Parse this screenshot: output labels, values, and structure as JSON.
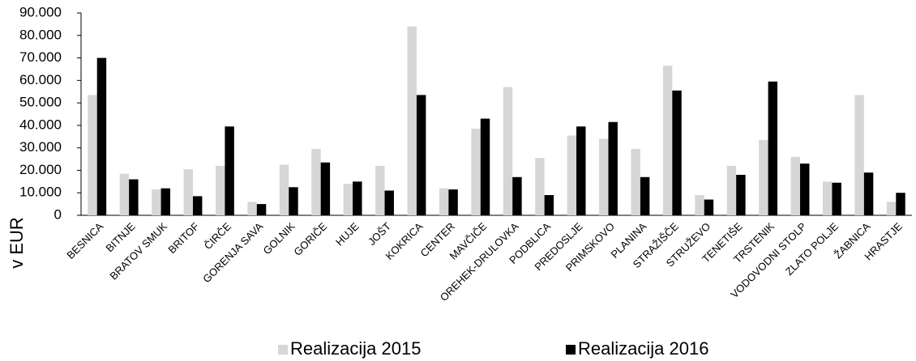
{
  "chart_data": {
    "type": "bar",
    "y_label": "v EUR",
    "categories": [
      "BESNICA",
      "BITNJE",
      "BRATOV SMUK",
      "BRITOF",
      "ČIRČE",
      "GORENJA SAVA",
      "GOLNIK",
      "GORIČE",
      "HUJE",
      "JOŠT",
      "KOKRICA",
      "CENTER",
      "MAVČIČE",
      "OREHEK-DRULOVKA",
      "PODBLICA",
      "PREDOSLJE",
      "PRIMSKOVO",
      "PLANINA",
      "STRAŽIŠČE",
      "STRUŽEVO",
      "TENETIŠE",
      "TRSTENIK",
      "VODOVODNI STOLP",
      "ZLATO POLJE",
      "ŽABNICA",
      "HRASTJE"
    ],
    "series": [
      {
        "name": "Realizacija 2015",
        "color": "#d6d6d6",
        "values": [
          53500,
          18500,
          11500,
          20500,
          22000,
          6000,
          22500,
          29500,
          14000,
          22000,
          84000,
          12000,
          38500,
          57000,
          25500,
          35500,
          34000,
          29500,
          66500,
          9000,
          22000,
          33500,
          26000,
          15000,
          53500,
          6000
        ]
      },
      {
        "name": "Realizacija 2016",
        "color": "#000000",
        "values": [
          70000,
          16000,
          12000,
          8500,
          39500,
          5000,
          12500,
          23500,
          15000,
          11000,
          53500,
          11500,
          43000,
          17000,
          9000,
          39500,
          41500,
          17000,
          55500,
          7000,
          18000,
          59500,
          23000,
          14500,
          19000,
          10000
        ]
      }
    ],
    "ylim": [
      0,
      90000
    ],
    "yticks": [
      0,
      {
        "value": 10000,
        "label": "10.000"
      },
      {
        "value": 20000,
        "label": "20.000"
      },
      {
        "value": 30000,
        "label": "30.000"
      },
      {
        "value": 40000,
        "label": "40.000"
      },
      {
        "value": 50000,
        "label": "50.000"
      },
      {
        "value": 60000,
        "label": "60.000"
      },
      {
        "value": 70000,
        "label": "70.000"
      },
      {
        "value": 80000,
        "label": "80.000"
      },
      {
        "value": 90000,
        "label": "90.000"
      }
    ],
    "legend": "bottom"
  }
}
